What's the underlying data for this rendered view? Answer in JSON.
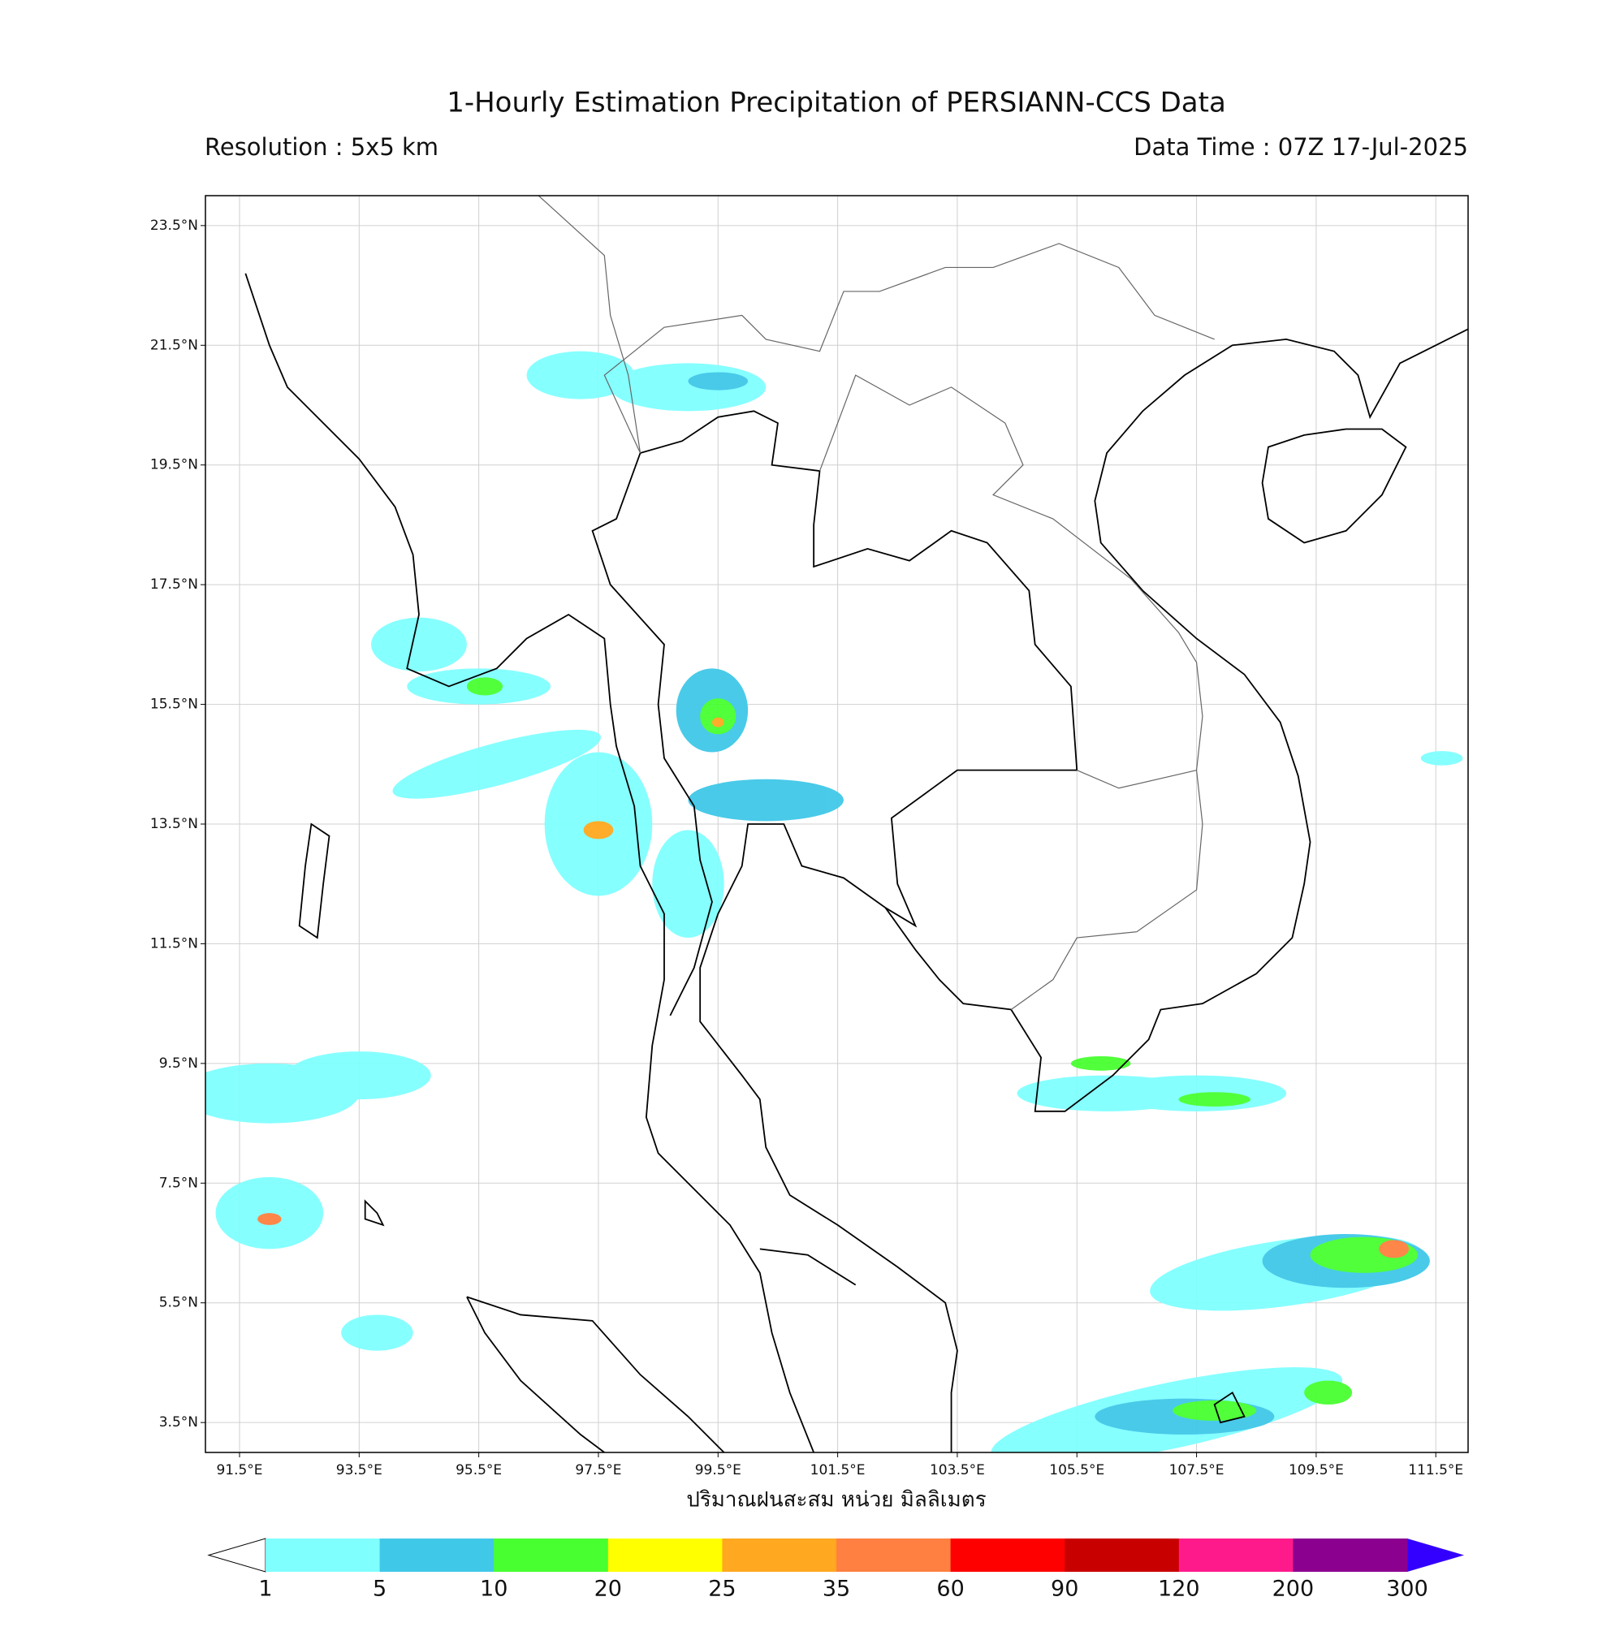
{
  "title": "1-Hourly Estimation Precipitation of PERSIANN-CCS Data",
  "resolution": "Resolution : 5x5 km",
  "data_time": "Data Time : 07Z 17-Jul-2025",
  "map": {
    "xlim": [
      90.93,
      112.04
    ],
    "ylim": [
      3.0,
      24.0
    ],
    "grid": true,
    "xticks": [
      {
        "value": 91.5,
        "label": "91.5°E"
      },
      {
        "value": 93.5,
        "label": "93.5°E"
      },
      {
        "value": 95.5,
        "label": "95.5°E"
      },
      {
        "value": 97.5,
        "label": "97.5°E"
      },
      {
        "value": 99.5,
        "label": "99.5°E"
      },
      {
        "value": 101.5,
        "label": "101.5°E"
      },
      {
        "value": 103.5,
        "label": "103.5°E"
      },
      {
        "value": 105.5,
        "label": "105.5°E"
      },
      {
        "value": 107.5,
        "label": "107.5°E"
      },
      {
        "value": 109.5,
        "label": "109.5°E"
      },
      {
        "value": 111.5,
        "label": "111.5°E"
      }
    ],
    "yticks": [
      {
        "value": 3.5,
        "label": "3.5°N"
      },
      {
        "value": 5.5,
        "label": "5.5°N"
      },
      {
        "value": 7.5,
        "label": "7.5°N"
      },
      {
        "value": 9.5,
        "label": "9.5°N"
      },
      {
        "value": 11.5,
        "label": "11.5°N"
      },
      {
        "value": 13.5,
        "label": "13.5°N"
      },
      {
        "value": 15.5,
        "label": "15.5°N"
      },
      {
        "value": 17.5,
        "label": "17.5°N"
      },
      {
        "value": 19.5,
        "label": "19.5°N"
      },
      {
        "value": 21.5,
        "label": "21.5°N"
      },
      {
        "value": 23.5,
        "label": "23.5°N"
      }
    ],
    "xlabel": "ปริมาณฝนสะสม หน่วย มิลลิเมตร"
  },
  "colorbar": {
    "levels": [
      1,
      5,
      10,
      20,
      25,
      35,
      60,
      90,
      120,
      200,
      300
    ],
    "colors": [
      "#80ffff",
      "#40c8e8",
      "#48ff30",
      "#ffff00",
      "#ffa820",
      "#ff8040",
      "#ff0000",
      "#c80000",
      "#ff1a8c",
      "#8c0090"
    ],
    "over_color": "#3300ff",
    "under_color": "#ffffff"
  }
}
